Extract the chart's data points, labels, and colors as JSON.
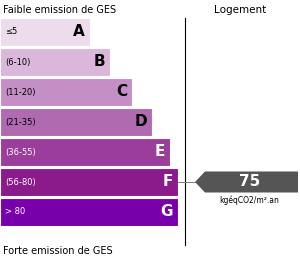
{
  "title_top": "Faible emission de GES",
  "title_bottom": "Forte emission de GES",
  "right_label": "Logement",
  "unit_label": "kgéqCO2/m².an",
  "value": 75,
  "value_row": 5,
  "categories": [
    {
      "label": "≤5",
      "letter": "A",
      "color": "#ecdcec",
      "text_color": "black"
    },
    {
      "label": "(6-10)",
      "letter": "B",
      "color": "#dbb8db",
      "text_color": "black"
    },
    {
      "label": "(11-20)",
      "letter": "C",
      "color": "#c48fc4",
      "text_color": "black"
    },
    {
      "label": "(21-35)",
      "letter": "D",
      "color": "#b06ab0",
      "text_color": "black"
    },
    {
      "label": "(36-55)",
      "letter": "E",
      "color": "#9b3d9b",
      "text_color": "white"
    },
    {
      "label": "(56-80)",
      "letter": "F",
      "color": "#8b1a8b",
      "text_color": "white"
    },
    {
      "label": "> 80",
      "letter": "G",
      "color": "#7700aa",
      "text_color": "white"
    }
  ],
  "arrow_color": "#555555",
  "figsize": [
    3.0,
    2.6
  ],
  "dpi": 100
}
